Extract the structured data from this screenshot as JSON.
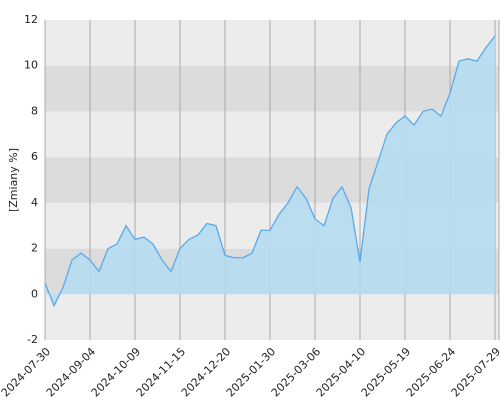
{
  "chart_data": {
    "type": "area",
    "y_label": "[Zmiany %]",
    "x": [
      "2024-07-30",
      "2024-08-06",
      "2024-08-13",
      "2024-08-20",
      "2024-08-27",
      "2024-09-04",
      "2024-09-11",
      "2024-09-18",
      "2024-09-25",
      "2024-10-02",
      "2024-10-09",
      "2024-10-16",
      "2024-10-23",
      "2024-10-30",
      "2024-11-07",
      "2024-11-15",
      "2024-11-22",
      "2024-11-29",
      "2024-12-06",
      "2024-12-13",
      "2024-12-20",
      "2024-12-30",
      "2025-01-09",
      "2025-01-16",
      "2025-01-23",
      "2025-01-30",
      "2025-02-06",
      "2025-02-13",
      "2025-02-20",
      "2025-02-27",
      "2025-03-06",
      "2025-03-13",
      "2025-03-20",
      "2025-03-27",
      "2025-04-03",
      "2025-04-10",
      "2025-04-17",
      "2025-04-28",
      "2025-05-05",
      "2025-05-12",
      "2025-05-19",
      "2025-05-26",
      "2025-06-02",
      "2025-06-09",
      "2025-06-16",
      "2025-06-24",
      "2025-07-01",
      "2025-07-08",
      "2025-07-15",
      "2025-07-22",
      "2025-07-29"
    ],
    "series": [
      {
        "name": "Zmiany",
        "color": "#5aaaea",
        "fill": "#b5dbef",
        "values": [
          0.5,
          -0.5,
          0.3,
          1.5,
          1.8,
          1.5,
          1.0,
          2.0,
          2.2,
          3.0,
          2.4,
          2.5,
          2.2,
          1.5,
          1.0,
          2.0,
          2.4,
          2.6,
          3.1,
          3.0,
          1.7,
          1.6,
          1.6,
          1.8,
          2.8,
          2.8,
          3.5,
          4.0,
          4.7,
          4.2,
          3.3,
          3.0,
          4.2,
          4.7,
          3.8,
          1.4,
          4.6,
          5.8,
          7.0,
          7.5,
          7.8,
          7.4,
          8.0,
          8.1,
          7.8,
          8.8,
          10.2,
          10.3,
          10.2,
          10.8,
          11.3
        ]
      }
    ],
    "xticks": [
      "2024-07-30",
      "2024-09-04",
      "2024-10-09",
      "2024-11-15",
      "2024-12-20",
      "2025-01-30",
      "2025-03-06",
      "2025-04-10",
      "2025-05-19",
      "2025-06-24",
      "2025-07-29"
    ],
    "ylim": [
      -2,
      12
    ],
    "yticks": [
      -2,
      0,
      2,
      4,
      6,
      8,
      10,
      12
    ],
    "grid": true
  }
}
